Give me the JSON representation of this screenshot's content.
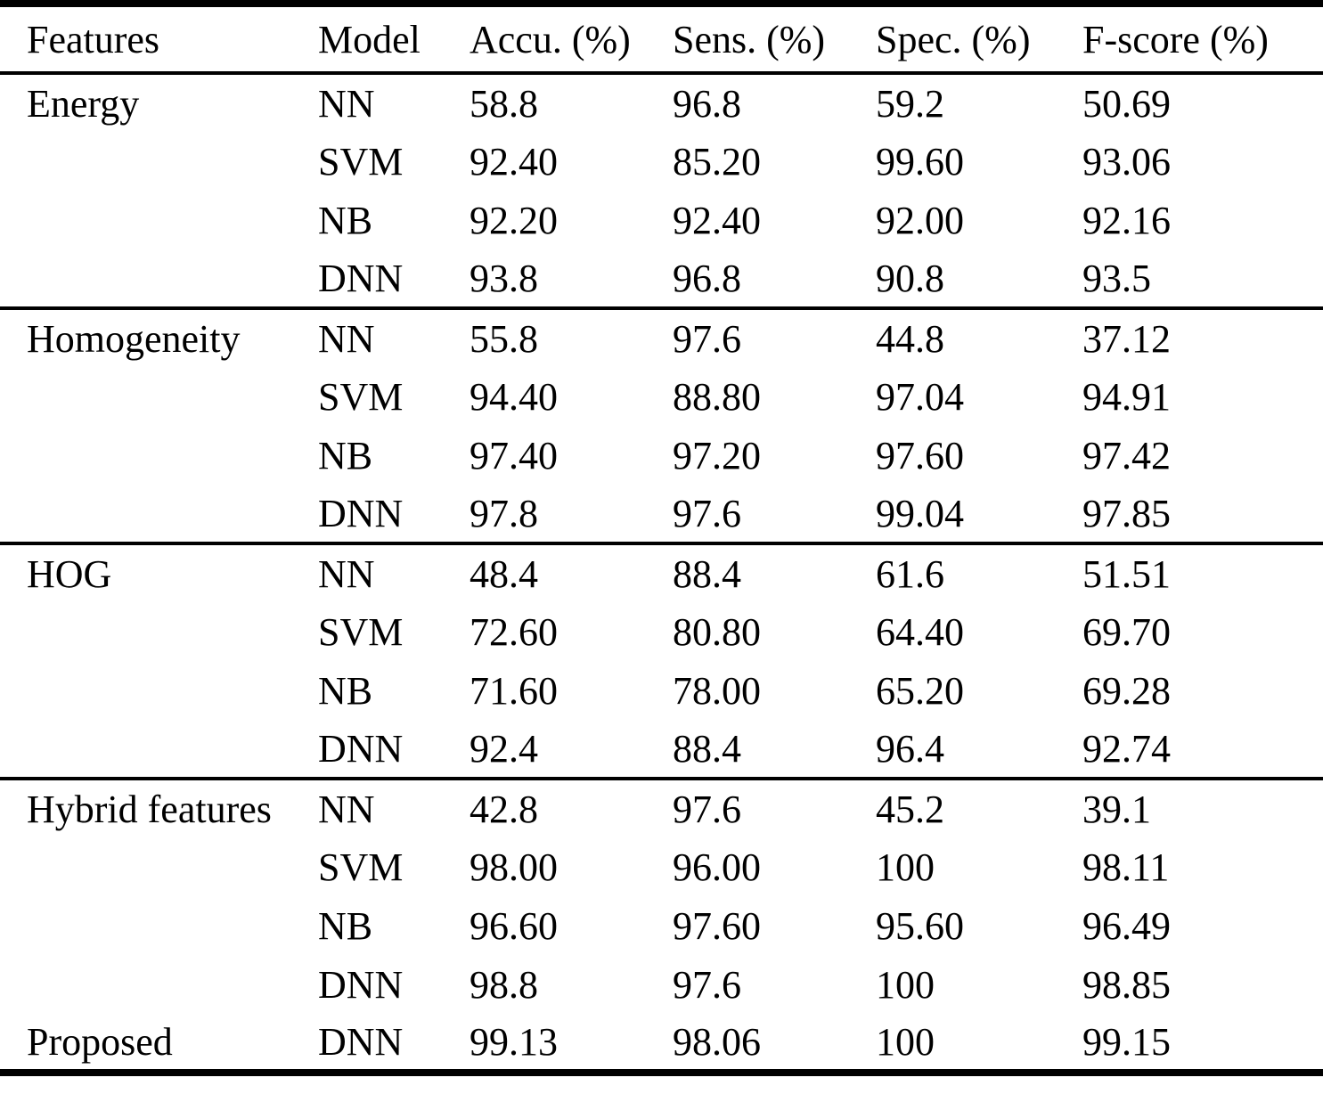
{
  "table": {
    "columns": [
      "Features",
      "Model",
      "Accu. (%)",
      "Sens. (%)",
      "Spec. (%)",
      "F-score (%)"
    ],
    "sections": [
      {
        "feature": "Energy",
        "rows": [
          {
            "model": "NN",
            "accu": "58.8",
            "sens": "96.8",
            "spec": "59.2",
            "fscore": "50.69"
          },
          {
            "model": "SVM",
            "accu": "92.40",
            "sens": "85.20",
            "spec": "99.60",
            "fscore": "93.06"
          },
          {
            "model": "NB",
            "accu": "92.20",
            "sens": "92.40",
            "spec": "92.00",
            "fscore": "92.16"
          },
          {
            "model": "DNN",
            "accu": "93.8",
            "sens": "96.8",
            "spec": "90.8",
            "fscore": "93.5"
          }
        ]
      },
      {
        "feature": "Homogeneity",
        "rows": [
          {
            "model": "NN",
            "accu": "55.8",
            "sens": "97.6",
            "spec": "44.8",
            "fscore": "37.12"
          },
          {
            "model": "SVM",
            "accu": "94.40",
            "sens": "88.80",
            "spec": "97.04",
            "fscore": "94.91"
          },
          {
            "model": "NB",
            "accu": "97.40",
            "sens": "97.20",
            "spec": "97.60",
            "fscore": "97.42"
          },
          {
            "model": "DNN",
            "accu": "97.8",
            "sens": "97.6",
            "spec": "99.04",
            "fscore": "97.85"
          }
        ]
      },
      {
        "feature": "HOG",
        "rows": [
          {
            "model": "NN",
            "accu": "48.4",
            "sens": "88.4",
            "spec": "61.6",
            "fscore": "51.51"
          },
          {
            "model": "SVM",
            "accu": "72.60",
            "sens": "80.80",
            "spec": "64.40",
            "fscore": "69.70"
          },
          {
            "model": "NB",
            "accu": "71.60",
            "sens": "78.00",
            "spec": "65.20",
            "fscore": "69.28"
          },
          {
            "model": "DNN",
            "accu": "92.4",
            "sens": "88.4",
            "spec": "96.4",
            "fscore": "92.74"
          }
        ]
      },
      {
        "feature": "Hybrid features",
        "rows": [
          {
            "model": "NN",
            "accu": "42.8",
            "sens": "97.6",
            "spec": "45.2",
            "fscore": "39.1"
          },
          {
            "model": "SVM",
            "accu": "98.00",
            "sens": "96.00",
            "spec": "100",
            "fscore": "98.11"
          },
          {
            "model": "NB",
            "accu": "96.60",
            "sens": "97.60",
            "spec": "95.60",
            "fscore": "96.49"
          },
          {
            "model": "DNN",
            "accu": "98.8",
            "sens": "97.6",
            "spec": "100",
            "fscore": "98.85"
          }
        ]
      },
      {
        "feature": "Proposed",
        "rows": [
          {
            "model": "DNN",
            "accu": "99.13",
            "sens": "98.06",
            "spec": "100",
            "fscore": "99.15"
          }
        ]
      }
    ],
    "colors": {
      "text": "#000000",
      "background": "#ffffff",
      "rule": "#000000"
    }
  }
}
